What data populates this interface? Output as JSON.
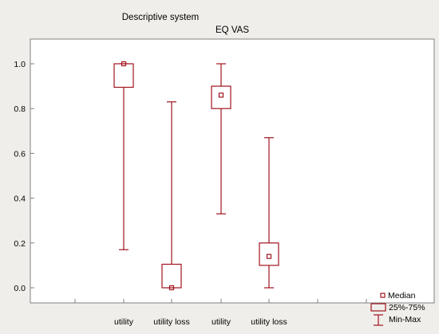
{
  "chart_data": {
    "type": "box",
    "group_labels": [
      "Descriptive system",
      "EQ VAS"
    ],
    "categories": [
      "utility",
      "utility loss",
      "utility",
      "utility loss"
    ],
    "series": [
      {
        "group": "Descriptive system",
        "category": "utility",
        "median": 1.0,
        "q1": 0.895,
        "q3": 1.0,
        "min": 0.17,
        "max": 1.0
      },
      {
        "group": "Descriptive system",
        "category": "utility loss",
        "median": 0.0,
        "q1": 0.0,
        "q3": 0.105,
        "min": 0.0,
        "max": 0.83
      },
      {
        "group": "EQ VAS",
        "category": "utility",
        "median": 0.86,
        "q1": 0.8,
        "q3": 0.9,
        "min": 0.33,
        "max": 1.0
      },
      {
        "group": "EQ VAS",
        "category": "utility loss",
        "median": 0.14,
        "q1": 0.1,
        "q3": 0.2,
        "min": 0.0,
        "max": 0.67
      }
    ],
    "ylim": [
      -0.08,
      1.08
    ],
    "yticks": [
      "0.0",
      "0.2",
      "0.4",
      "0.6",
      "0.8",
      "1.0"
    ],
    "legend": {
      "placement": "bottom-right",
      "items": [
        "Median",
        "25%-75%",
        "Min-Max"
      ]
    },
    "grid": false,
    "colors": {
      "box": "#a0141e",
      "axis": "#808080",
      "plot_bg": "#ffffff",
      "page_bg": "#f0eeea"
    }
  }
}
